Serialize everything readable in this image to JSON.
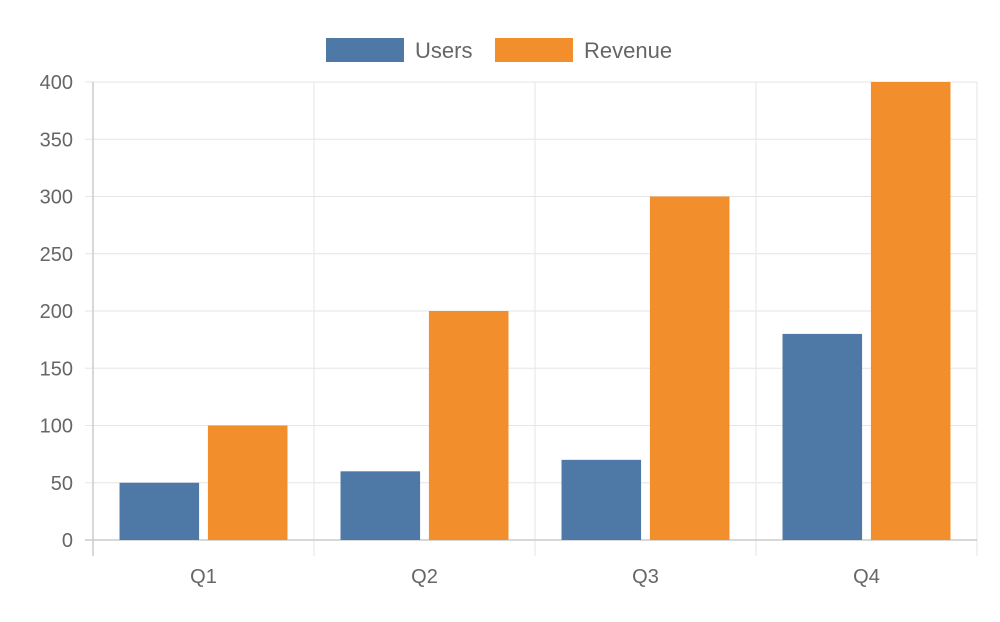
{
  "chart_data": {
    "type": "bar",
    "categories": [
      "Q1",
      "Q2",
      "Q3",
      "Q4"
    ],
    "series": [
      {
        "name": "Users",
        "values": [
          50,
          60,
          70,
          180
        ],
        "color": "#4e79a7"
      },
      {
        "name": "Revenue",
        "values": [
          100,
          200,
          300,
          400
        ],
        "color": "#f28e2b"
      }
    ],
    "ylim": [
      0,
      400
    ],
    "yticks": [
      0,
      50,
      100,
      150,
      200,
      250,
      300,
      350,
      400
    ],
    "legend": "top-center",
    "grid": true
  },
  "colors": {
    "grid": "#e6e6e6",
    "axis": "#cccccc",
    "text": "#666666"
  }
}
